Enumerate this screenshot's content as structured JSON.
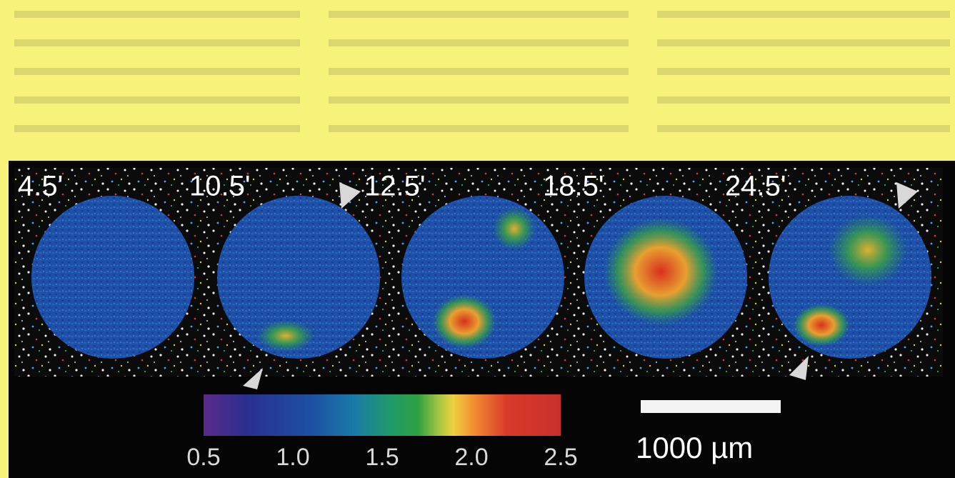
{
  "panels": [
    {
      "label": "4.5'"
    },
    {
      "label": "10.5'"
    },
    {
      "label": "12.5'"
    },
    {
      "label": "18.5'"
    },
    {
      "label": "24.5'"
    }
  ],
  "colorbar": {
    "lim": [
      0.5,
      2.5
    ],
    "ticks": [
      0.5,
      {
        "value": 1,
        "label": "1.0"
      },
      1.5,
      {
        "value": 2,
        "label": "2.0"
      },
      2.5
    ]
  },
  "scale_bar": {
    "label": "1000 µm"
  }
}
